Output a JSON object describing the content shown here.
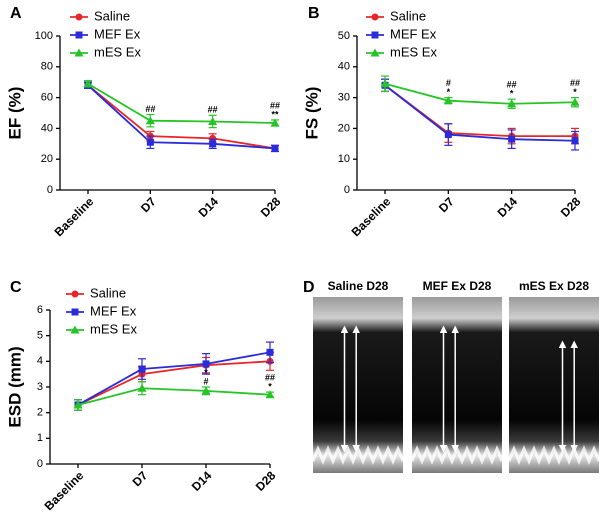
{
  "chart_data": [
    {
      "type": "line",
      "panel_label": "A",
      "ylabel": "EF (%)",
      "categories": [
        "Baseline",
        "D7",
        "D14",
        "D28"
      ],
      "series": [
        {
          "name": "Saline",
          "color": "#e8262a",
          "marker": "circle",
          "values": [
            68,
            35,
            33.5,
            27
          ],
          "errors": [
            2,
            3,
            3,
            2
          ]
        },
        {
          "name": "MEF Ex",
          "color": "#2a2bd9",
          "marker": "square",
          "values": [
            68,
            31,
            30,
            27
          ],
          "errors": [
            2,
            4,
            3,
            2
          ]
        },
        {
          "name": "mES Ex",
          "color": "#27c427",
          "marker": "triangle",
          "values": [
            69,
            45,
            44.5,
            43.5
          ],
          "errors": [
            2,
            4,
            4,
            2
          ]
        }
      ],
      "annotations": [
        null,
        [
          "##"
        ],
        [
          "##"
        ],
        [
          "##",
          "**"
        ]
      ],
      "ylim": [
        0,
        100
      ],
      "yticks": [
        0,
        20,
        40,
        60,
        80,
        100
      ],
      "legend": "top-left"
    },
    {
      "type": "line",
      "panel_label": "B",
      "ylabel": "FS (%)",
      "categories": [
        "Baseline",
        "D7",
        "D14",
        "D28"
      ],
      "series": [
        {
          "name": "Saline",
          "color": "#e8262a",
          "marker": "circle",
          "values": [
            34,
            18.5,
            17.5,
            17.5
          ],
          "errors": [
            2,
            3,
            2.5,
            2.5
          ]
        },
        {
          "name": "MEF Ex",
          "color": "#2a2bd9",
          "marker": "square",
          "values": [
            34,
            18,
            16.5,
            16
          ],
          "errors": [
            2,
            3.5,
            3,
            3
          ]
        },
        {
          "name": "mES Ex",
          "color": "#27c427",
          "marker": "triangle",
          "values": [
            34.5,
            29,
            28,
            28.5
          ],
          "errors": [
            2.5,
            1,
            1.5,
            1.5
          ]
        }
      ],
      "annotations": [
        null,
        [
          "#",
          "*"
        ],
        [
          "##",
          "*"
        ],
        [
          "##",
          "*"
        ]
      ],
      "ylim": [
        0,
        50
      ],
      "yticks": [
        0,
        10,
        20,
        30,
        40,
        50
      ],
      "legend": "top-left"
    },
    {
      "type": "line",
      "panel_label": "C",
      "ylabel": "ESD (mm)",
      "categories": [
        "Baseline",
        "D7",
        "D14",
        "D28"
      ],
      "series": [
        {
          "name": "Saline",
          "color": "#e8262a",
          "marker": "circle",
          "values": [
            2.3,
            3.5,
            3.85,
            4.0
          ],
          "errors": [
            0.2,
            0.3,
            0.3,
            0.35
          ]
        },
        {
          "name": "MEF Ex",
          "color": "#2a2bd9",
          "marker": "square",
          "values": [
            2.3,
            3.7,
            3.9,
            4.35
          ],
          "errors": [
            0.2,
            0.4,
            0.4,
            0.4
          ]
        },
        {
          "name": "mES Ex",
          "color": "#27c427",
          "marker": "triangle",
          "values": [
            2.3,
            2.95,
            2.85,
            2.7
          ],
          "errors": [
            0.2,
            0.25,
            0.15,
            0.1
          ]
        }
      ],
      "annotations": [
        null,
        null,
        [
          "*",
          "#"
        ],
        [
          "##",
          "*"
        ]
      ],
      "ylim": [
        0,
        6
      ],
      "yticks": [
        0,
        1,
        2,
        3,
        4,
        5,
        6
      ],
      "legend": "top-left"
    }
  ],
  "panel_d": {
    "label": "D",
    "images": [
      "Saline D28",
      "MEF Ex D28",
      "mES Ex D28"
    ]
  }
}
